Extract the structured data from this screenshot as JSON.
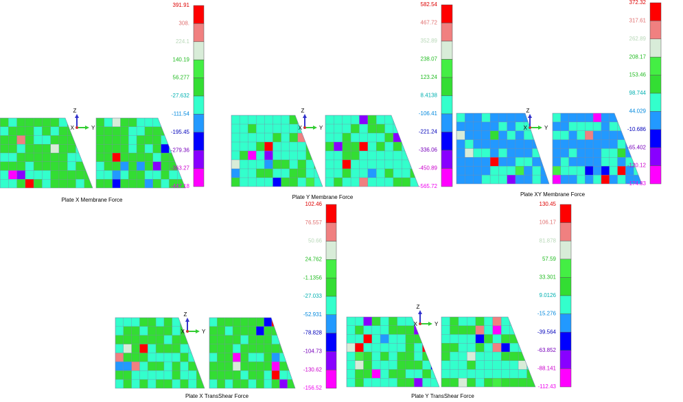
{
  "panels": [
    {
      "title": "Plate X Membrane Force",
      "legend": [
        "391.91",
        "308.",
        "224.1",
        "140.19",
        "56.277",
        "-27.632",
        "-111.54",
        "-195.45",
        "-279.36",
        "-363.27",
        "-447.18"
      ],
      "triad": {
        "z": "Z",
        "x": "X",
        "y": "Y"
      }
    },
    {
      "title": "Plate Y Membrane Force",
      "legend": [
        "582.54",
        "467.72",
        "352.89",
        "238.07",
        "123.24",
        "8.4138",
        "-106.41",
        "-221.24",
        "-336.06",
        "-450.89",
        "-565.72"
      ],
      "triad": {
        "z": "Z",
        "x": "X",
        "y": "Y"
      }
    },
    {
      "title": "Plate XY Membrane Force",
      "legend": [
        "372.32",
        "317.61",
        "262.89",
        "208.17",
        "153.46",
        "98.744",
        "44.029",
        "-10.686",
        "-65.402",
        "-120.12",
        "-174.83"
      ],
      "triad": {
        "z": "Z",
        "x": "X",
        "y": "Y"
      }
    },
    {
      "title": "Plate X TransShear Force",
      "legend": [
        "102.46",
        "76.557",
        "50.66",
        "24.762",
        "-1.1356",
        "-27.033",
        "-52.931",
        "-78.828",
        "-104.73",
        "-130.62",
        "-156.52"
      ],
      "triad": {
        "z": "Z",
        "x": "X",
        "y": "Y"
      }
    },
    {
      "title": "Plate Y TransShear Force",
      "legend": [
        "130.45",
        "106.17",
        "81.878",
        "57.59",
        "33.301",
        "9.0126",
        "-15.276",
        "-39.564",
        "-63.852",
        "-88.141",
        "-112.43"
      ],
      "triad": {
        "z": "Z",
        "x": "X",
        "y": "Y"
      }
    }
  ]
}
